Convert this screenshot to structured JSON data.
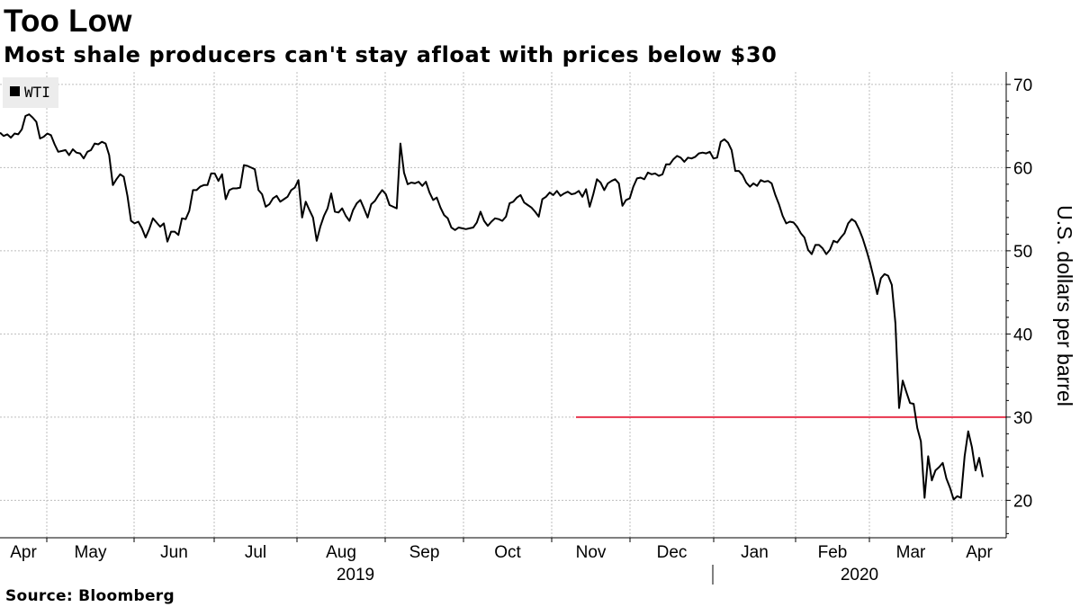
{
  "title": "Too Low",
  "subtitle": "Most shale producers can't stay afloat with prices below $30",
  "source": "Source: Bloomberg",
  "chart_data": {
    "type": "line",
    "title": "Too Low",
    "subtitle": "Most shale producers can't stay afloat with prices below $30",
    "ylabel": "U.S. dollars per barrel",
    "xlabel": "",
    "ylim": [
      15.5,
      71.5
    ],
    "yticks": [
      20,
      30,
      40,
      50,
      60,
      70
    ],
    "grid": true,
    "legend": {
      "position": "top-left",
      "entries": [
        "WTI"
      ]
    },
    "months": [
      "Apr",
      "May",
      "Jun",
      "Jul",
      "Aug",
      "Sep",
      "Oct",
      "Nov",
      "Dec",
      "Jan",
      "Feb",
      "Mar",
      "Apr"
    ],
    "years": [
      "2019",
      "2020"
    ],
    "reference_line": {
      "value": 30,
      "color": "#e8344d",
      "start_month_index": 7.0
    },
    "series": [
      {
        "name": "WTI",
        "color": "#000000",
        "values": [
          64.2,
          63.8,
          64.0,
          63.6,
          64.1,
          64.0,
          64.6,
          66.2,
          66.4,
          66.0,
          65.5,
          63.5,
          63.7,
          64.1,
          63.9,
          62.8,
          61.9,
          62.0,
          62.1,
          61.5,
          62.2,
          61.8,
          61.7,
          61.1,
          61.9,
          62.1,
          62.9,
          62.8,
          63.1,
          62.9,
          61.5,
          57.9,
          58.6,
          59.2,
          58.9,
          56.6,
          53.6,
          53.3,
          53.5,
          52.7,
          51.6,
          52.6,
          53.9,
          53.4,
          52.9,
          53.3,
          51.1,
          52.3,
          52.3,
          51.9,
          53.9,
          53.8,
          54.8,
          57.3,
          57.3,
          57.7,
          57.9,
          57.9,
          59.3,
          59.3,
          58.4,
          59.2,
          56.2,
          57.3,
          57.5,
          57.5,
          57.6,
          60.3,
          60.2,
          60.0,
          59.8,
          57.3,
          56.8,
          55.3,
          55.6,
          56.3,
          56.6,
          55.9,
          56.2,
          56.5,
          57.3,
          57.6,
          58.5,
          54.0,
          55.9,
          54.9,
          54.0,
          51.2,
          52.9,
          54.2,
          55.1,
          56.9,
          54.7,
          54.6,
          55.1,
          54.2,
          53.6,
          54.9,
          55.7,
          56.1,
          55.1,
          54.0,
          55.6,
          56.0,
          56.7,
          57.3,
          56.8,
          55.5,
          55.3,
          55.1,
          62.9,
          59.4,
          58.0,
          58.2,
          58.1,
          58.3,
          57.8,
          58.3,
          57.0,
          56.1,
          56.4,
          55.2,
          54.3,
          53.9,
          52.8,
          52.5,
          52.8,
          52.7,
          52.6,
          52.7,
          52.8,
          53.4,
          54.7,
          53.6,
          53.0,
          53.5,
          53.9,
          53.8,
          53.6,
          54.1,
          55.7,
          55.9,
          56.4,
          56.7,
          55.8,
          55.5,
          55.2,
          54.7,
          54.1,
          56.2,
          56.5,
          57.0,
          56.7,
          57.2,
          56.6,
          56.9,
          57.1,
          56.8,
          56.9,
          57.2,
          56.5,
          57.4,
          55.3,
          56.8,
          58.6,
          58.2,
          57.3,
          58.1,
          58.4,
          58.6,
          58.1,
          55.4,
          56.1,
          56.3,
          57.7,
          58.7,
          58.8,
          58.6,
          59.4,
          59.2,
          59.3,
          59.0,
          59.2,
          60.4,
          60.4,
          61.0,
          61.4,
          61.2,
          60.7,
          61.2,
          61.1,
          61.3,
          61.7,
          61.8,
          61.7,
          61.9,
          61.1,
          61.2,
          63.1,
          63.4,
          63.0,
          62.1,
          59.6,
          59.6,
          59.1,
          58.2,
          57.7,
          58.1,
          57.8,
          58.5,
          58.3,
          58.4,
          58.1,
          56.7,
          55.6,
          54.2,
          53.3,
          53.5,
          53.4,
          52.9,
          52.1,
          51.6,
          50.1,
          49.6,
          50.7,
          50.7,
          50.3,
          49.6,
          50.1,
          51.2,
          51.0,
          51.6,
          52.1,
          53.3,
          53.8,
          53.5,
          52.6,
          51.5,
          50.1,
          48.6,
          46.8,
          44.8,
          46.7,
          47.2,
          47.0,
          45.9,
          41.3,
          31.1,
          34.4,
          33.0,
          31.7,
          31.6,
          28.7,
          27.1,
          20.3,
          25.3,
          22.4,
          23.6,
          24.0,
          24.5,
          22.6,
          21.5,
          20.1,
          20.5,
          20.3,
          25.3,
          28.3,
          26.4,
          23.6,
          25.1,
          22.8
        ]
      }
    ]
  }
}
